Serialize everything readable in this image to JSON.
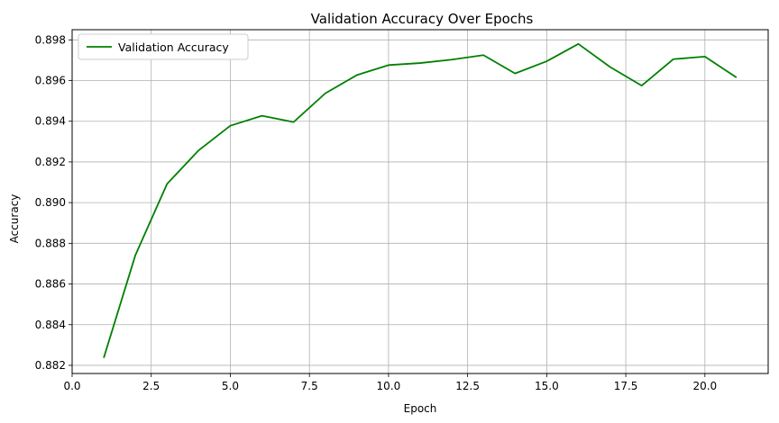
{
  "chart_data": {
    "type": "line",
    "title": "Validation Accuracy Over Epochs",
    "xlabel": "Epoch",
    "ylabel": "Accuracy",
    "xlim": [
      0.0,
      22.0
    ],
    "ylim": [
      0.8816,
      0.8985
    ],
    "x_ticks": [
      0.0,
      2.5,
      5.0,
      7.5,
      10.0,
      12.5,
      15.0,
      17.5,
      20.0
    ],
    "x_tick_labels": [
      "0.0",
      "2.5",
      "5.0",
      "7.5",
      "10.0",
      "12.5",
      "15.0",
      "17.5",
      "20.0"
    ],
    "y_ticks": [
      0.882,
      0.884,
      0.886,
      0.888,
      0.89,
      0.892,
      0.894,
      0.896,
      0.898
    ],
    "y_tick_labels": [
      "0.882",
      "0.884",
      "0.886",
      "0.888",
      "0.890",
      "0.892",
      "0.894",
      "0.896",
      "0.898"
    ],
    "grid": true,
    "legend_position": "top-left",
    "series": [
      {
        "name": "Validation Accuracy",
        "color": "#008000",
        "x": [
          1,
          2,
          3,
          4,
          5,
          6,
          7,
          8,
          9,
          10,
          11,
          12,
          13,
          14,
          15,
          16,
          17,
          18,
          19,
          20,
          21
        ],
        "y": [
          0.88237,
          0.88742,
          0.89092,
          0.89257,
          0.89378,
          0.89427,
          0.89396,
          0.89537,
          0.89627,
          0.89676,
          0.89686,
          0.89703,
          0.89725,
          0.89635,
          0.89695,
          0.8978,
          0.89667,
          0.89575,
          0.89705,
          0.89718,
          0.89615
        ]
      }
    ]
  }
}
